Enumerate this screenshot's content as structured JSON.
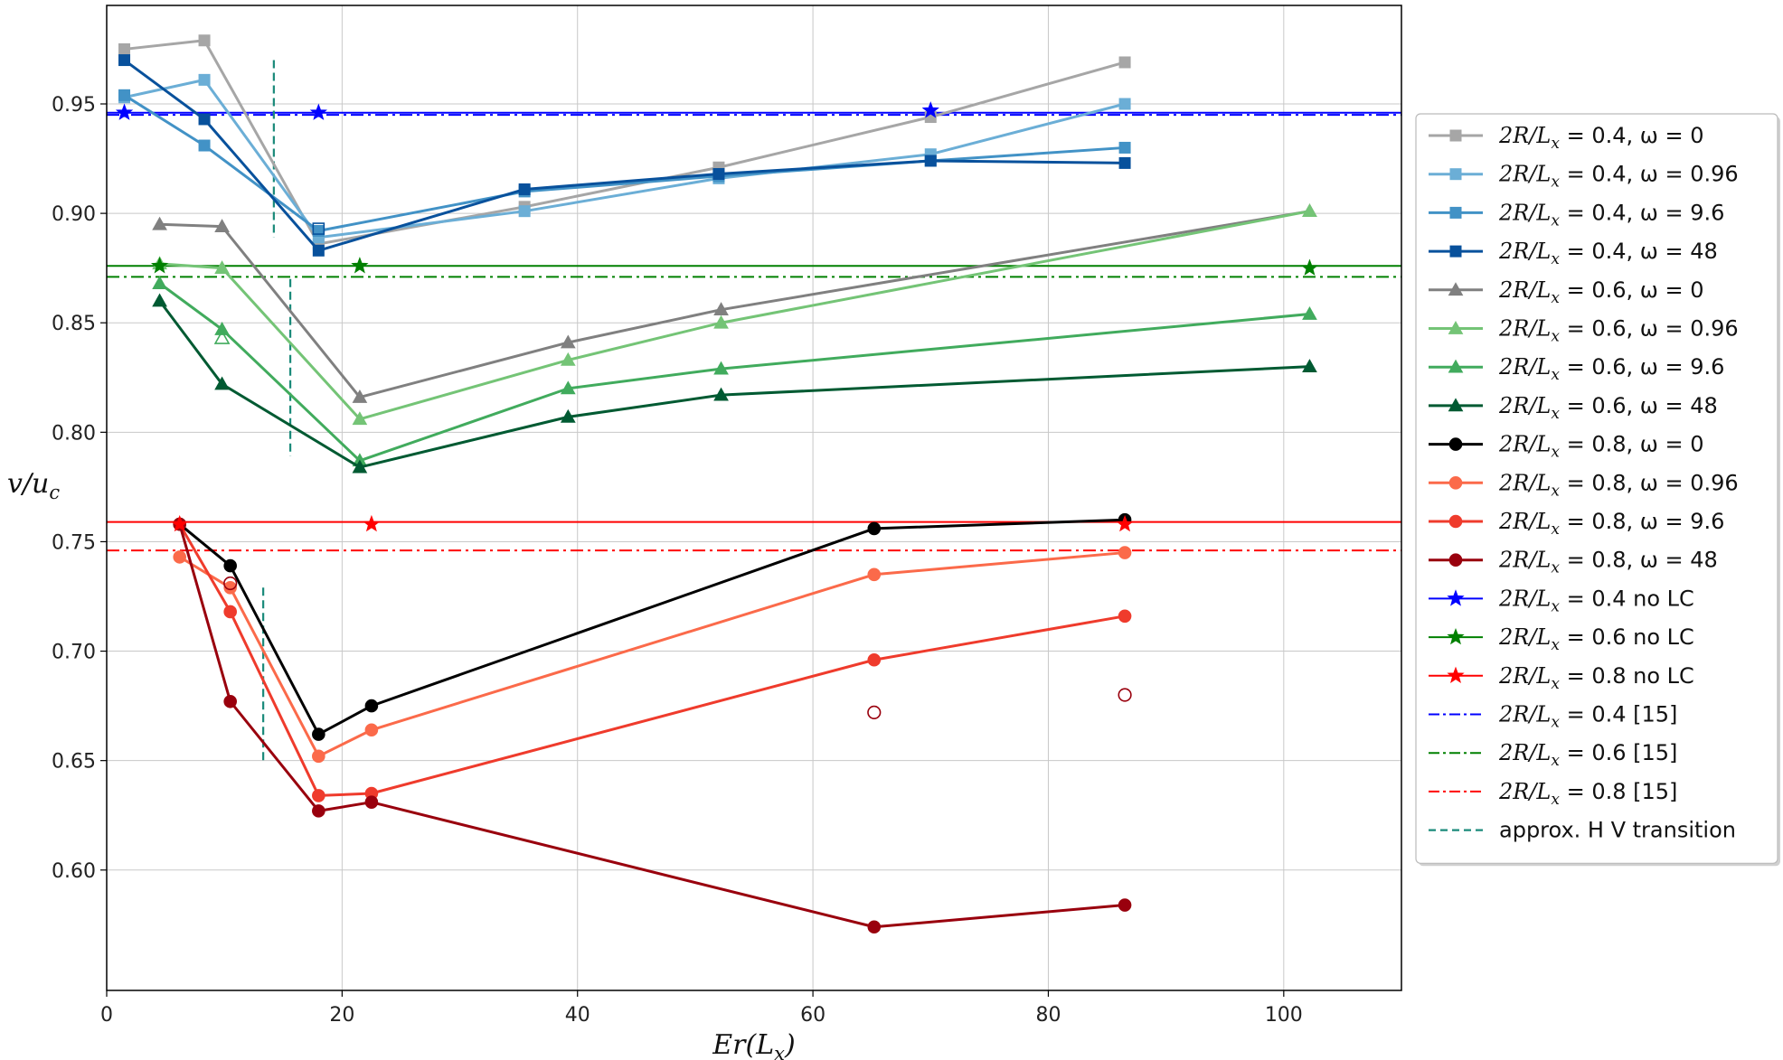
{
  "chart_data": {
    "type": "line",
    "title": "",
    "xlabel": "Er(L_x)",
    "ylabel": "v/u_c",
    "xlim": [
      0,
      110
    ],
    "ylim": [
      0.545,
      0.995
    ],
    "xticks": [
      0,
      20,
      40,
      60,
      80,
      100
    ],
    "xtick_labels": [
      "0",
      "20",
      "40",
      "60",
      "80",
      "100"
    ],
    "yticks": [
      0.6,
      0.65,
      0.7,
      0.75,
      0.8,
      0.85,
      0.9,
      0.95
    ],
    "ytick_labels": [
      "0.60",
      "0.65",
      "0.70",
      "0.75",
      "0.80",
      "0.85",
      "0.90",
      "0.95"
    ],
    "grid": true,
    "legend_position": "outside-right",
    "series": [
      {
        "name": "2R/Lx = 0.4, ω = 0",
        "color": "#a6a6a6",
        "marker": "square",
        "x": [
          1.5,
          8.3,
          18,
          35.5,
          52,
          70,
          86.5
        ],
        "y": [
          0.975,
          0.979,
          0.886,
          0.903,
          0.921,
          0.944,
          0.969
        ]
      },
      {
        "name": "2R/Lx = 0.4, ω = 0.96",
        "color": "#6baed6",
        "marker": "square",
        "x": [
          1.5,
          8.3,
          18,
          35.5,
          52,
          70,
          86.5
        ],
        "y": [
          0.953,
          0.961,
          0.889,
          0.901,
          0.916,
          0.927,
          0.95
        ]
      },
      {
        "name": "2R/Lx = 0.4, ω = 9.6",
        "color": "#4292c6",
        "marker": "square",
        "x": [
          1.5,
          8.3,
          18,
          35.5,
          52,
          70,
          86.5
        ],
        "y": [
          0.954,
          0.931,
          0.892,
          0.91,
          0.917,
          0.924,
          0.93
        ]
      },
      {
        "name": "2R/Lx = 0.4, ω = 48",
        "color": "#08519c",
        "marker": "square",
        "x": [
          1.5,
          8.3,
          18,
          35.5,
          52,
          70,
          86.5
        ],
        "y": [
          0.97,
          0.943,
          0.883,
          0.911,
          0.918,
          0.924,
          0.923
        ]
      },
      {
        "name": "2R/Lx = 0.6, ω = 0",
        "color": "#808080",
        "marker": "triangle",
        "x": [
          4.5,
          9.8,
          21.5,
          39.2,
          52.2,
          102.2
        ],
        "y": [
          0.895,
          0.894,
          0.816,
          0.841,
          0.856,
          0.901
        ]
      },
      {
        "name": "2R/Lx = 0.6, ω = 0.96",
        "color": "#74c476",
        "marker": "triangle",
        "x": [
          4.5,
          9.8,
          21.5,
          39.2,
          52.2,
          102.2
        ],
        "y": [
          0.877,
          0.875,
          0.806,
          0.833,
          0.85,
          0.901
        ]
      },
      {
        "name": "2R/Lx = 0.6, ω = 9.6",
        "color": "#41ab5d",
        "marker": "triangle",
        "x": [
          4.5,
          9.8,
          21.5,
          39.2,
          52.2,
          102.2
        ],
        "y": [
          0.868,
          0.847,
          0.787,
          0.82,
          0.829,
          0.854
        ]
      },
      {
        "name": "2R/Lx = 0.6, ω = 48",
        "color": "#005a32",
        "marker": "triangle",
        "x": [
          4.5,
          9.8,
          21.5,
          39.2,
          52.2,
          102.2
        ],
        "y": [
          0.86,
          0.822,
          0.784,
          0.807,
          0.817,
          0.83
        ]
      },
      {
        "name": "2R/Lx = 0.8, ω = 0",
        "color": "#000000",
        "marker": "circle",
        "x": [
          6.2,
          10.5,
          18,
          22.5,
          65.2,
          86.5
        ],
        "y": [
          0.758,
          0.739,
          0.662,
          0.675,
          0.756,
          0.76
        ]
      },
      {
        "name": "2R/Lx = 0.8, ω = 0.96",
        "color": "#fb6a4a",
        "marker": "circle",
        "x": [
          6.2,
          10.5,
          18,
          22.5,
          65.2,
          86.5
        ],
        "y": [
          0.743,
          0.729,
          0.652,
          0.664,
          0.735,
          0.745
        ]
      },
      {
        "name": "2R/Lx = 0.8, ω = 9.6",
        "color": "#ef3b2c",
        "marker": "circle",
        "x": [
          6.2,
          10.5,
          18,
          22.5,
          65.2,
          86.5
        ],
        "y": [
          0.758,
          0.718,
          0.634,
          0.635,
          0.696,
          0.716
        ]
      },
      {
        "name": "2R/Lx = 0.8, ω = 48",
        "color": "#99000d",
        "marker": "circle",
        "x": [
          6.2,
          10.5,
          18,
          22.5,
          65.2,
          86.5
        ],
        "y": [
          0.758,
          0.677,
          0.627,
          0.631,
          0.574,
          0.584
        ]
      },
      {
        "name": "2R/Lx = 0.4 no LC",
        "color": "#0000ff",
        "marker": "star",
        "line": "hline",
        "y_line": 0.946,
        "x": [
          1.5,
          18,
          70
        ],
        "y": [
          0.946,
          0.946,
          0.947
        ]
      },
      {
        "name": "2R/Lx = 0.6 no LC",
        "color": "#008000",
        "marker": "star",
        "line": "hline",
        "y_line": 0.876,
        "x": [
          4.5,
          21.5,
          102.2
        ],
        "y": [
          0.876,
          0.876,
          0.875
        ]
      },
      {
        "name": "2R/Lx = 0.8 no LC",
        "color": "#ff0000",
        "marker": "star",
        "line": "hline",
        "y_line": 0.759,
        "x": [
          6.2,
          22.5,
          86.5
        ],
        "y": [
          0.758,
          0.758,
          0.758
        ]
      },
      {
        "name": "2R/Lx = 0.4 [15]",
        "color": "#0000ff",
        "line": "dashdot",
        "y_line": 0.945
      },
      {
        "name": "2R/Lx = 0.6 [15]",
        "color": "#008000",
        "line": "dashdot",
        "y_line": 0.871
      },
      {
        "name": "2R/Lx = 0.8 [15]",
        "color": "#ff0000",
        "line": "dashdot",
        "y_line": 0.746
      },
      {
        "name": "approx. H V transition",
        "color": "#1a8a7a",
        "line": "dashed-vertical",
        "segments": [
          {
            "x": 14.2,
            "y0": 0.889,
            "y1": 0.97
          },
          {
            "x": 15.6,
            "y0": 0.789,
            "y1": 0.87
          },
          {
            "x": 13.3,
            "y0": 0.65,
            "y1": 0.729
          }
        ]
      }
    ],
    "open_markers": [
      {
        "marker": "square",
        "color": "#08519c",
        "x": 18,
        "y": 0.893
      },
      {
        "marker": "triangle",
        "color": "#41ab5d",
        "x": 9.8,
        "y": 0.843
      },
      {
        "marker": "circle",
        "color": "#99000d",
        "x": 10.5,
        "y": 0.731
      },
      {
        "marker": "circle",
        "color": "#99000d",
        "x": 65.2,
        "y": 0.672
      },
      {
        "marker": "circle",
        "color": "#99000d",
        "x": 86.5,
        "y": 0.68
      }
    ]
  }
}
